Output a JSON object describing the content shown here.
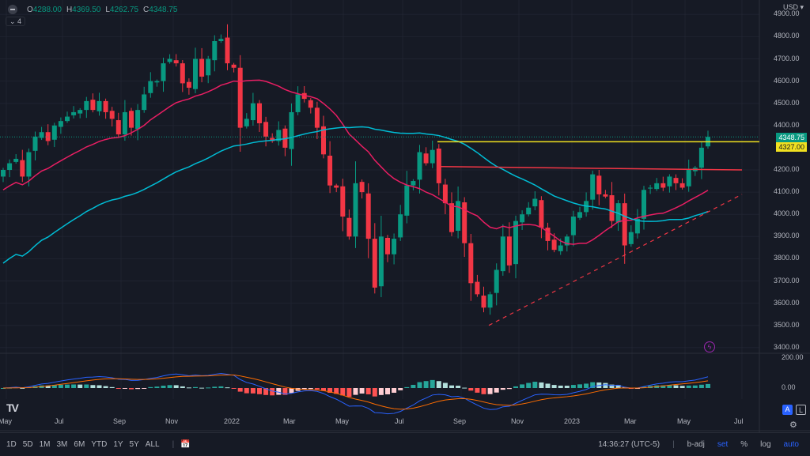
{
  "legend": {
    "o_label": "O",
    "o": "4288.00",
    "h_label": "H",
    "h": "4369.50",
    "l_label": "L",
    "l": "4262.75",
    "c_label": "C",
    "c": "4348.75"
  },
  "indicator_count": "4",
  "currency": "USD",
  "price_axis": [
    "4900.00",
    "4800.00",
    "4700.00",
    "4600.00",
    "4500.00",
    "4400.00",
    "4200.00",
    "4100.00",
    "4000.00",
    "3900.00",
    "3800.00",
    "3700.00",
    "3600.00",
    "3500.00",
    "3400.00"
  ],
  "macd_axis": [
    "200.00",
    "0.00"
  ],
  "last_price_label": "4348.75",
  "level_label": "4327.00",
  "time_axis": [
    "May",
    "Jul",
    "Sep",
    "Nov",
    "2022",
    "Mar",
    "May",
    "Jul",
    "Sep",
    "Nov",
    "2023",
    "Mar",
    "May",
    "Jul"
  ],
  "toolbar": {
    "ranges": [
      "1D",
      "5D",
      "1M",
      "3M",
      "6M",
      "YTD",
      "1Y",
      "5Y",
      "ALL"
    ],
    "clock": "14:36:27 (UTC-5)",
    "badj": "b-adj",
    "set": "set",
    "pct": "%",
    "log": "log",
    "auto": "auto"
  },
  "scale_buttons": {
    "a": "A",
    "l": "L"
  },
  "logo": "TV",
  "colors": {
    "up": "#089981",
    "down": "#f23645",
    "ma_fast": "#e91e63",
    "ma_slow": "#00bcd4",
    "level": "#f0e020",
    "macd": "#2962ff",
    "signal": "#ff6d00"
  },
  "chart_data": {
    "type": "candlestick",
    "interval": "weekly",
    "closes": [
      4200,
      4230,
      4250,
      4170,
      4280,
      4350,
      4370,
      4330,
      4400,
      4420,
      4440,
      4460,
      4470,
      4510,
      4470,
      4510,
      4460,
      4430,
      4360,
      4460,
      4390,
      4470,
      4540,
      4600,
      4600,
      4680,
      4700,
      4680,
      4590,
      4570,
      4700,
      4620,
      4700,
      4780,
      4790,
      4680,
      4660,
      4390,
      4430,
      4500,
      4410,
      4350,
      4330,
      4380,
      4300,
      4460,
      4540,
      4520,
      4480,
      4390,
      4270,
      4130,
      4120,
      3990,
      3900,
      4140,
      4100,
      3890,
      3670,
      3900,
      3820,
      3890,
      4000,
      4130,
      4150,
      4280,
      4230,
      4290,
      4140,
      4050,
      3920,
      4060,
      3870,
      3690,
      3640,
      3580,
      3640,
      3750,
      3900,
      3770,
      3970,
      4000,
      4030,
      4070,
      3940,
      3880,
      3840,
      3860,
      3900,
      3990,
      4010,
      4060,
      4180,
      4090,
      4080,
      3970,
      4050,
      3860,
      3920,
      3980,
      4110,
      4120,
      4140,
      4120,
      4170,
      4140,
      4120,
      4200,
      4210,
      4300,
      4348.75
    ],
    "ma_periods": [
      20,
      50
    ],
    "horizontal_level": 4327,
    "resistance_line": [
      4215,
      4200
    ],
    "trendline": [
      3500,
      4090
    ],
    "ylim": [
      3400,
      4900
    ]
  }
}
